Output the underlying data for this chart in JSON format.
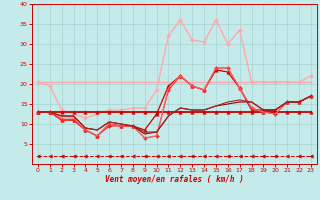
{
  "xlabel": "Vent moyen/en rafales ( km/h )",
  "xlim": [
    -0.5,
    23.5
  ],
  "ylim": [
    0,
    40
  ],
  "yticks": [
    5,
    10,
    15,
    20,
    25,
    30,
    35,
    40
  ],
  "xticks": [
    0,
    1,
    2,
    3,
    4,
    5,
    6,
    7,
    8,
    9,
    10,
    11,
    12,
    13,
    14,
    15,
    16,
    17,
    18,
    19,
    20,
    21,
    22,
    23
  ],
  "bg_color": "#c5eaea",
  "grid_color": "#a8d4d4",
  "x": [
    0,
    1,
    2,
    3,
    4,
    5,
    6,
    7,
    8,
    9,
    10,
    11,
    12,
    13,
    14,
    15,
    16,
    17,
    18,
    19,
    20,
    21,
    22,
    23
  ],
  "series": [
    {
      "y": [
        20.5,
        20.5,
        20.5,
        20.5,
        20.5,
        20.5,
        20.5,
        20.5,
        20.5,
        20.5,
        20.5,
        20.5,
        20.5,
        20.5,
        20.5,
        20.5,
        20.5,
        20.5,
        20.5,
        20.5,
        20.5,
        20.5,
        20.5,
        20.5
      ],
      "color": "#ffaaaa",
      "lw": 1.0,
      "marker": null,
      "ls": "-"
    },
    {
      "y": [
        20.5,
        19.5,
        13.5,
        12.5,
        11.5,
        12.5,
        13.5,
        13.5,
        14,
        14,
        18.5,
        32,
        36,
        31,
        30.5,
        36,
        30,
        33.5,
        20.5,
        20.5,
        20.5,
        20.5,
        20.5,
        22
      ],
      "color": "#ffaaaa",
      "lw": 1.0,
      "marker": "D",
      "ms": 2,
      "ls": "-"
    },
    {
      "y": [
        13,
        13,
        13,
        13,
        13,
        13,
        13,
        13,
        13,
        13,
        13,
        13,
        13,
        13,
        13,
        13,
        13,
        13,
        13,
        13,
        13,
        13,
        13,
        13
      ],
      "color": "#cc0000",
      "lw": 1.3,
      "marker": "^",
      "ms": 2.5,
      "ls": "-"
    },
    {
      "y": [
        13,
        13,
        11,
        11,
        8.5,
        7,
        10,
        9.5,
        9.5,
        8.5,
        12.5,
        19.5,
        22,
        19.5,
        18.5,
        23.5,
        23,
        19,
        13.5,
        13.5,
        13.5,
        15.5,
        15.5,
        17
      ],
      "color": "#cc0000",
      "lw": 0.9,
      "marker": "^",
      "ms": 2.5,
      "ls": "-"
    },
    {
      "y": [
        13,
        13,
        11,
        11,
        8.5,
        7,
        9.5,
        9.5,
        9.5,
        6.5,
        7,
        18.5,
        22,
        19.5,
        18.5,
        24,
        24,
        19,
        14,
        13,
        12.5,
        15.5,
        15.5,
        17
      ],
      "color": "#ff2222",
      "lw": 0.8,
      "marker": "D",
      "ms": 2,
      "ls": "-"
    },
    {
      "y": [
        13,
        13,
        11.5,
        11.5,
        8.5,
        7,
        10,
        9.5,
        9.5,
        6.5,
        7,
        19,
        22,
        19.5,
        18.5,
        24,
        24,
        19,
        14,
        13,
        12.5,
        15.5,
        15.5,
        17
      ],
      "color": "#ff6666",
      "lw": 0.7,
      "marker": null,
      "ls": "-"
    },
    {
      "y": [
        13,
        13,
        12,
        12,
        9,
        8.5,
        10.5,
        10,
        9.5,
        7.5,
        8,
        12,
        14,
        13.5,
        13.5,
        14.5,
        15,
        15.5,
        15.5,
        13.5,
        13.5,
        15.5,
        15.5,
        17
      ],
      "color": "#880000",
      "lw": 0.8,
      "marker": null,
      "ls": "-"
    },
    {
      "y": [
        13,
        13,
        12,
        12,
        9,
        8.5,
        10.5,
        10,
        9.5,
        8,
        8,
        12,
        14,
        13.5,
        13.5,
        14.5,
        15.5,
        16,
        15.5,
        13.5,
        13.5,
        15.5,
        15.5,
        17
      ],
      "color": "#aa2222",
      "lw": 0.8,
      "marker": null,
      "ls": "-"
    },
    {
      "y": [
        2,
        2,
        2,
        2,
        2,
        2,
        2,
        2,
        2,
        2,
        2,
        2,
        2,
        2,
        2,
        2,
        2,
        2,
        2,
        2,
        2,
        2,
        2,
        2
      ],
      "color": "#cc0000",
      "lw": 0.7,
      "marker": "<",
      "ms": 2.5,
      "ls": "--"
    }
  ]
}
